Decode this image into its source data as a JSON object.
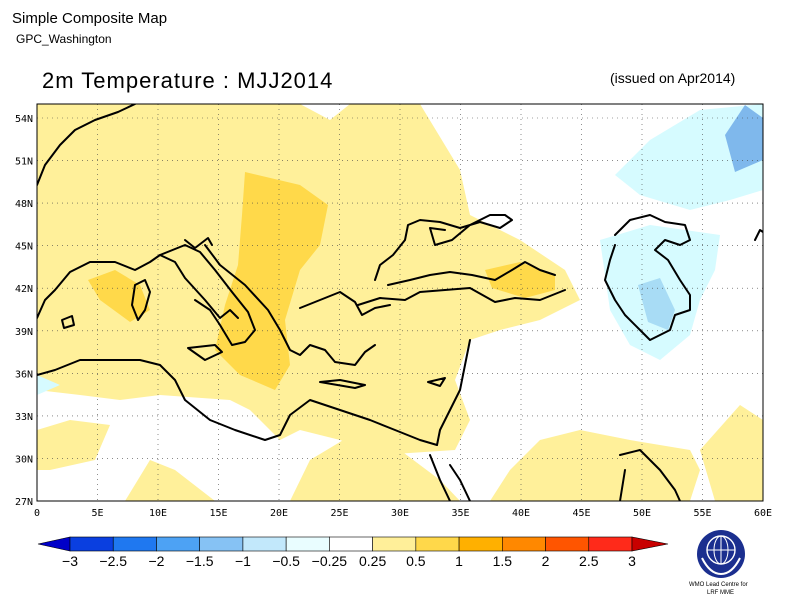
{
  "header": {
    "title": "Simple Composite Map",
    "subtitle": "GPC_Washington",
    "map_title": "2m Temperature : MJJ2014",
    "issued": "(issued on Apr2014)"
  },
  "map": {
    "lat_labels": [
      "54N",
      "51N",
      "48N",
      "45N",
      "42N",
      "39N",
      "36N",
      "33N",
      "30N",
      "27N"
    ],
    "lon_labels": [
      "0",
      "5E",
      "10E",
      "15E",
      "20E",
      "25E",
      "30E",
      "35E",
      "40E",
      "45E",
      "50E",
      "55E",
      "60E"
    ],
    "grid": true,
    "background_color": "#ffffff",
    "categories": {
      "above_0_25": "#fff09a",
      "above_0_5": "#ffd94a",
      "above_1": "#ffb400",
      "below_0_25": "#d6fbff",
      "below_0_5": "#a8dcf5",
      "below_1": "#7fb8ec"
    }
  },
  "colorbar": {
    "tick_labels": [
      "−3",
      "−2.5",
      "−2",
      "−1.5",
      "−1",
      "−0.5",
      "−0.25",
      "0.25",
      "0.5",
      "1",
      "1.5",
      "2",
      "2.5",
      "3"
    ],
    "colors": [
      "#0000c8",
      "#0a3fe0",
      "#1f78f0",
      "#4da2f4",
      "#86c2f4",
      "#c2e8fb",
      "#e9fdff",
      "#ffffff",
      "#ffef99",
      "#ffd84a",
      "#ffb000",
      "#ff8800",
      "#ff5500",
      "#ff2a1a",
      "#c80000"
    ]
  },
  "logo": {
    "line1": "WMO Lead Centre for",
    "line2": "LRF MME"
  }
}
